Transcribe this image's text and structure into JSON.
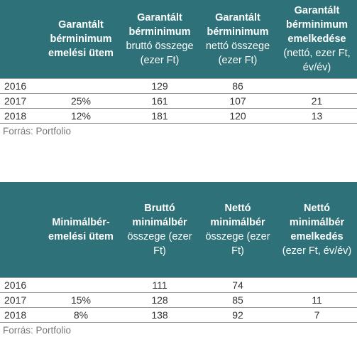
{
  "table1": {
    "headers": [
      {
        "bold": "",
        "light": ""
      },
      {
        "bold": "Garantált bérminimum emelési ütem",
        "light": ""
      },
      {
        "bold": "Garantált bérminimum",
        "light": "bruttó összege (ezer Ft)"
      },
      {
        "bold": "Garantált bérminimum",
        "light": "nettó összege (ezer Ft)"
      },
      {
        "bold": "Garantált bérminimum emelkedése",
        "light": "(nettó, ezer Ft, év/év)"
      }
    ],
    "rows": [
      [
        "2016",
        "",
        "129",
        "86",
        ""
      ],
      [
        "2017",
        "25%",
        "161",
        "107",
        "21"
      ],
      [
        "2018",
        "12%",
        "181",
        "120",
        "13"
      ]
    ],
    "source": "Forrás: Portfolio"
  },
  "table2": {
    "headers": [
      {
        "bold": "",
        "light": ""
      },
      {
        "bold": "Minimálbér-emelési ütem",
        "light": ""
      },
      {
        "bold": "Bruttó minimálbér",
        "light": "összege (ezer Ft)"
      },
      {
        "bold": "Nettó minimálbér",
        "light": "összege (ezer Ft)"
      },
      {
        "bold": "Nettó minimálbér emelkedés",
        "light": "(ezer Ft, év/év)"
      }
    ],
    "rows": [
      [
        "2016",
        "",
        "111",
        "74",
        ""
      ],
      [
        "2017",
        "15%",
        "128",
        "85",
        "11"
      ],
      [
        "2018",
        "8%",
        "138",
        "92",
        "7"
      ]
    ],
    "source": "Forrás: Portfolio"
  }
}
